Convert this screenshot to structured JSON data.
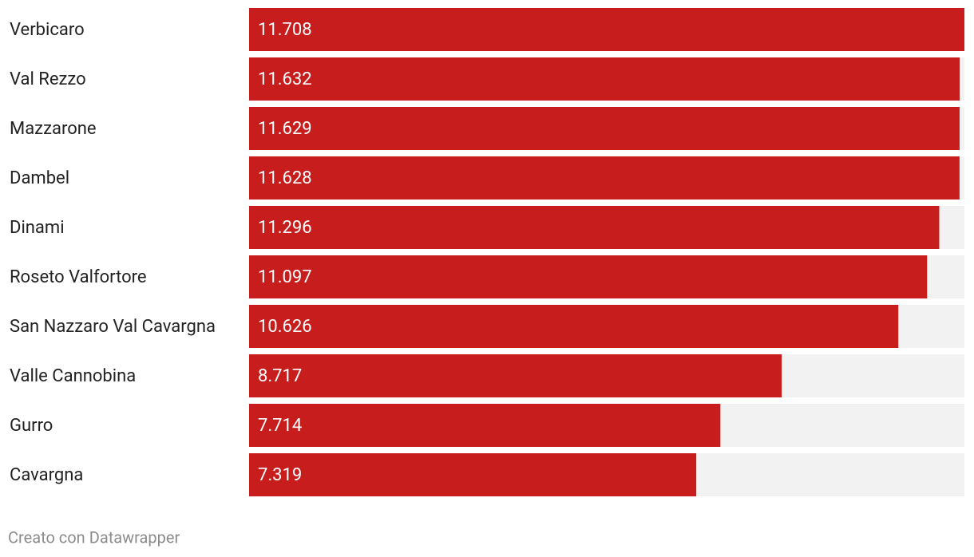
{
  "chart_data": {
    "type": "bar",
    "orientation": "horizontal",
    "categories": [
      "Verbicaro",
      "Val Rezzo",
      "Mazzarone",
      "Dambel",
      "Dinami",
      "Roseto Valfortore",
      "San Nazzaro Val Cavargna",
      "Valle Cannobina",
      "Gurro",
      "Cavargna"
    ],
    "values": [
      11708,
      11632,
      11629,
      11628,
      11296,
      11097,
      10626,
      8717,
      7714,
      7319
    ],
    "value_labels": [
      "11.708",
      "11.632",
      "11.629",
      "11.628",
      "11.296",
      "11.097",
      "10.626",
      "8.717",
      "7.714",
      "7.319"
    ],
    "color": "#c71e1d",
    "track_color": "#f2f2f2",
    "xlim": [
      0,
      11708
    ],
    "footer": "Creato con Datawrapper"
  }
}
